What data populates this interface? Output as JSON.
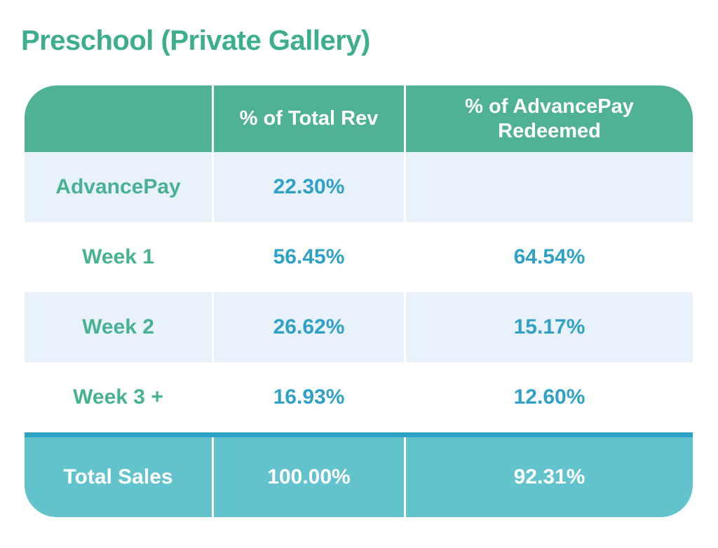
{
  "page": {
    "title": "Preschool (Private Gallery)"
  },
  "chart_data": {
    "type": "table",
    "title": "Preschool (Private Gallery)",
    "columns": [
      "",
      "% of Total Rev",
      "% of AdvancePay Redeemed"
    ],
    "rows": [
      {
        "label": "AdvancePay",
        "pct_of_total_rev": "22.30%",
        "pct_of_advancepay_redeemed": ""
      },
      {
        "label": "Week 1",
        "pct_of_total_rev": "56.45%",
        "pct_of_advancepay_redeemed": "64.54%"
      },
      {
        "label": "Week 2",
        "pct_of_total_rev": "26.62%",
        "pct_of_advancepay_redeemed": "15.17%"
      },
      {
        "label": "Week 3 +",
        "pct_of_total_rev": "16.93%",
        "pct_of_advancepay_redeemed": "12.60%"
      },
      {
        "label": "Total Sales",
        "pct_of_total_rev": "100.00%",
        "pct_of_advancepay_redeemed": "92.31%"
      }
    ],
    "layout": {
      "legend": "none",
      "grid": "off"
    }
  },
  "colors": {
    "title_green": "#3CAE8E",
    "header_green": "#4FB295",
    "label_green": "#47B191",
    "value_blue": "#2FA0C6",
    "row_alt_blue": "#E9F2FA",
    "row_white": "#FFFFFF",
    "total_teal": "#62C3CD",
    "total_divider_teal": "#2BA3C6",
    "column_divider_white": "#FFFFFF"
  }
}
